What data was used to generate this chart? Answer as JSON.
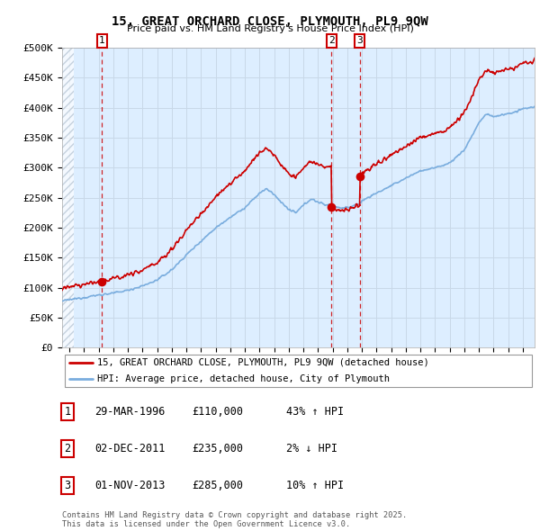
{
  "title": "15, GREAT ORCHARD CLOSE, PLYMOUTH, PL9 9QW",
  "subtitle": "Price paid vs. HM Land Registry's House Price Index (HPI)",
  "ylabel_ticks": [
    "£0",
    "£50K",
    "£100K",
    "£150K",
    "£200K",
    "£250K",
    "£300K",
    "£350K",
    "£400K",
    "£450K",
    "£500K"
  ],
  "ytick_values": [
    0,
    50000,
    100000,
    150000,
    200000,
    250000,
    300000,
    350000,
    400000,
    450000,
    500000
  ],
  "xmin": 1993.5,
  "xmax": 2025.8,
  "ymin": 0,
  "ymax": 500000,
  "sale_dates": [
    1996.23,
    2011.92,
    2013.84
  ],
  "sale_prices": [
    110000,
    235000,
    285000
  ],
  "sale_labels": [
    "1",
    "2",
    "3"
  ],
  "legend_line1": "15, GREAT ORCHARD CLOSE, PLYMOUTH, PL9 9QW (detached house)",
  "legend_line2": "HPI: Average price, detached house, City of Plymouth",
  "table_rows": [
    [
      "1",
      "29-MAR-1996",
      "£110,000",
      "43% ↑ HPI"
    ],
    [
      "2",
      "02-DEC-2011",
      "£235,000",
      "2% ↓ HPI"
    ],
    [
      "3",
      "01-NOV-2013",
      "£285,000",
      "10% ↑ HPI"
    ]
  ],
  "footer": "Contains HM Land Registry data © Crown copyright and database right 2025.\nThis data is licensed under the Open Government Licence v3.0.",
  "red_color": "#cc0000",
  "blue_color": "#7aadde",
  "grid_color": "#c8d8e8",
  "bg_color": "#ddeeff",
  "hatch_color": "#b0c0d0"
}
